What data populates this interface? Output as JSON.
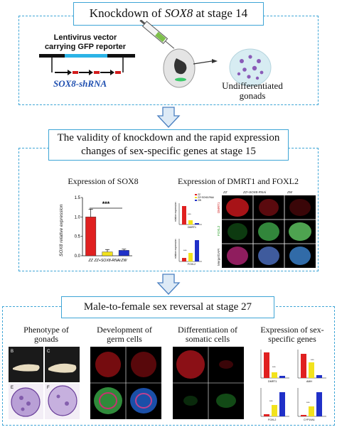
{
  "section1": {
    "title_prefix": "Knockdown of ",
    "title_gene": "SOX8",
    "title_suffix": " at stage 14",
    "vector_line1": "Lentivirus vector",
    "vector_line2": "carrying GFP reporter",
    "shrna_gene": "SOX8",
    "shrna_suffix": "-shRNA",
    "gonads_line1": "Undifferentiated",
    "gonads_line2": "gonads"
  },
  "section2": {
    "title_line1": "The validity of knockdown and the rapid expression",
    "title_line2": "changes of sex-specific genes at stage 15",
    "sox8_header": "Expression of SOX8",
    "dmrt_header": "Expression of DMRT1 and FOXL2",
    "sox8_chart": {
      "ylabel": "SOX8 relative expression",
      "yticks": [
        "0.0",
        "0.5",
        "1.0",
        "1.5"
      ],
      "categories": [
        "ZZ",
        "ZZ+SOX8-RNAi",
        "ZW"
      ],
      "significance": "***"
    },
    "mini_charts": {
      "legend": [
        "ZZ",
        "ZZ+SOX8-RNAi",
        "ZW"
      ],
      "top_label": "DMRT1",
      "bottom_label": "FOXL2",
      "ylabel": "relative expression",
      "stars": "***"
    },
    "micro": {
      "columns": [
        "ZZ",
        "ZZ+SOX8-RNAi",
        "ZW"
      ],
      "rows": [
        "DMRT1",
        "FOXL2",
        "Merge/DAPI"
      ]
    }
  },
  "section3": {
    "title": "Male-to-female sex reversal at stage 27",
    "col1_line1": "Phenotype of",
    "col1_line2": "gonads",
    "col2_line1": "Development of",
    "col2_line2": "germ cells",
    "col3_line1": "Differentiation of",
    "col3_line2": "somatic cells",
    "col4_line1": "Expression of sex-",
    "col4_line2": "specific genes",
    "panel_letters": [
      "B",
      "C",
      "E",
      "F"
    ],
    "mini_labels": [
      "DMRT1",
      "AMH",
      "FOXL2",
      "CYP19A1"
    ],
    "stars": "***"
  },
  "chart_data": {
    "type": "bar",
    "title": "Expression of SOX8",
    "categories": [
      "ZZ",
      "ZZ+SOX8-RNAi",
      "ZW"
    ],
    "values": [
      1.0,
      0.1,
      0.14
    ],
    "errors": [
      0.2,
      0.06,
      0.03
    ],
    "ylabel": "SOX8 relative expression",
    "ylim": [
      0,
      1.5
    ],
    "colors": [
      "#e02020",
      "#f2e21c",
      "#2030c8"
    ],
    "annotation": "***"
  },
  "colors": {
    "accent": "#3ea5d6",
    "arrow_fill": "#ddeaf6",
    "arrow_stroke": "#4a7fc0",
    "shrna_text": "#1f4fb0",
    "gonad_fill": "#d7ecf2",
    "gonad_dots": "#8a5bb8"
  }
}
